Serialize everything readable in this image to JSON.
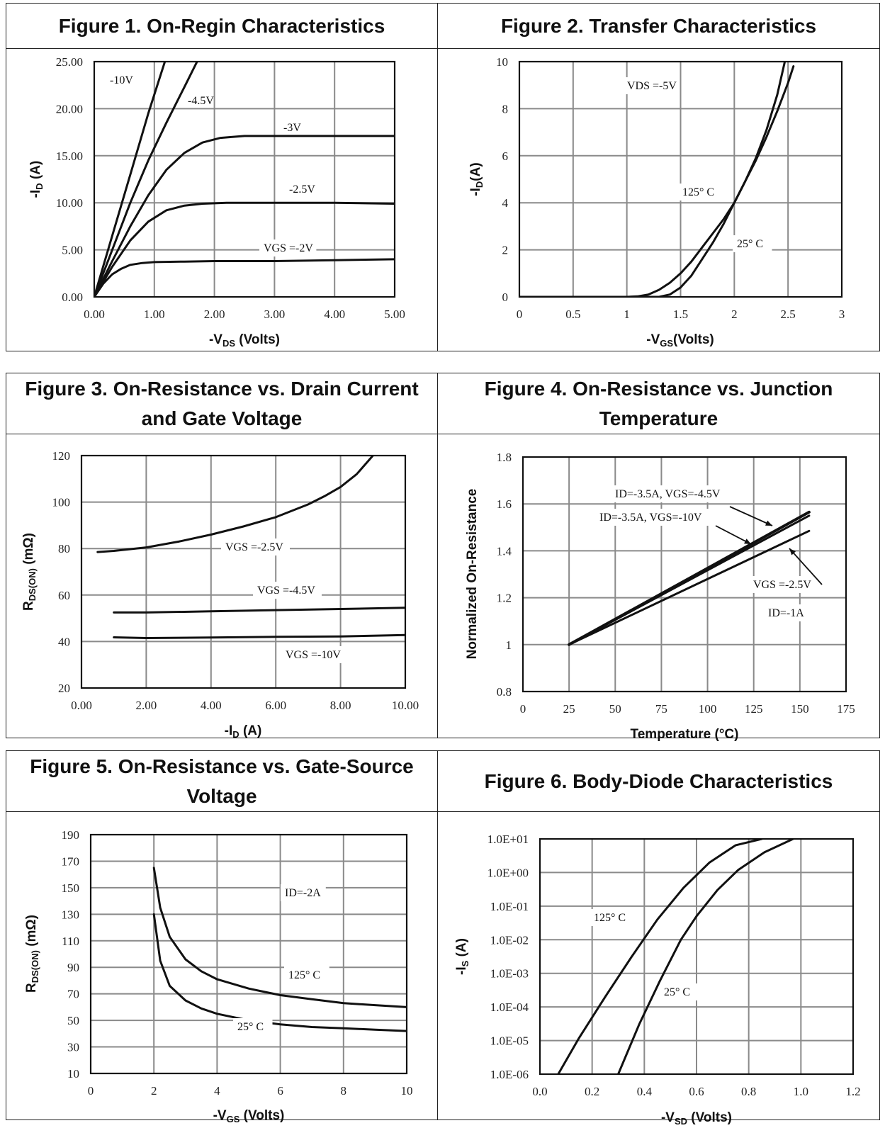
{
  "figures": [
    {
      "title": "Figure 1. On-Regin Characteristics",
      "xlabel": "-Vₑₛ (Volts)",
      "xlabel_main": "-V",
      "xlabel_sub": "DS",
      "xlabel_tail": " (Volts)",
      "ylabel_main": "-I",
      "ylabel_sub": "D",
      "ylabel_tail": " (A)"
    },
    {
      "title": "Figure 2. Transfer Characteristics",
      "xlabel_main": "-V",
      "xlabel_sub": "GS",
      "xlabel_tail": "(Volts)",
      "ylabel_main": "-I",
      "ylabel_sub": "D",
      "ylabel_tail": "(A)"
    },
    {
      "title": "Figure 3. On-Resistance vs. Drain Current and Gate Voltage",
      "xlabel_main": "-I",
      "xlabel_sub": "D",
      "xlabel_tail": " (A)",
      "ylabel_main": "R",
      "ylabel_sub": "DS(ON)",
      "ylabel_tail": " (mΩ)"
    },
    {
      "title": "Figure 4. On-Resistance vs. Junction Temperature",
      "xlabel_main": "Temperature (°C)",
      "xlabel_sub": "",
      "xlabel_tail": "",
      "ylabel_main": "Normalized On-Resistance",
      "ylabel_sub": "",
      "ylabel_tail": ""
    },
    {
      "title": "Figure 5. On-Resistance vs. Gate-Source Voltage",
      "xlabel_main": "-V",
      "xlabel_sub": "GS",
      "xlabel_tail": " (Volts)",
      "ylabel_main": "R",
      "ylabel_sub": "DS(ON)",
      "ylabel_tail": " (mΩ)"
    },
    {
      "title": "Figure 6. Body-Diode Characteristics",
      "xlabel_main": "-V",
      "xlabel_sub": "SD",
      "xlabel_tail": " (Volts)",
      "ylabel_main": "-I",
      "ylabel_sub": "S",
      "ylabel_tail": " (A)"
    }
  ],
  "chart_data": [
    {
      "type": "line",
      "title": "Figure 1. On-Regin Characteristics",
      "xlabel": "-VDS (Volts)",
      "ylabel": "-ID (A)",
      "xlim": [
        0,
        5
      ],
      "ylim": [
        0,
        25
      ],
      "xticks": [
        "0.00",
        "1.00",
        "2.00",
        "3.00",
        "4.00",
        "5.00"
      ],
      "yticks": [
        "0.00",
        "5.00",
        "10.00",
        "15.00",
        "20.00",
        "25.00"
      ],
      "grid": true,
      "series": [
        {
          "name": "-10V",
          "x": [
            0,
            0.3,
            0.6,
            0.9,
            1.2
          ],
          "y": [
            0,
            6.5,
            13,
            19.5,
            25.5
          ]
        },
        {
          "name": "-4.5V",
          "x": [
            0,
            0.3,
            0.6,
            0.9,
            1.2,
            1.5,
            1.75
          ],
          "y": [
            0,
            5,
            10,
            14.5,
            18.5,
            22.3,
            25.5
          ]
        },
        {
          "name": "-3V",
          "x": [
            0,
            0.3,
            0.6,
            0.9,
            1.2,
            1.5,
            1.8,
            2.1,
            2.5,
            3,
            4,
            5
          ],
          "y": [
            0,
            3.8,
            7.5,
            10.8,
            13.5,
            15.3,
            16.4,
            16.9,
            17.1,
            17.1,
            17.1,
            17.1
          ]
        },
        {
          "name": "-2.5V",
          "x": [
            0,
            0.3,
            0.6,
            0.9,
            1.2,
            1.5,
            1.8,
            2.2,
            3,
            4,
            5
          ],
          "y": [
            0,
            3.2,
            6,
            8,
            9.2,
            9.7,
            9.9,
            10,
            10,
            10,
            9.9
          ]
        },
        {
          "name": "VGS=-2V",
          "x": [
            0,
            0.15,
            0.3,
            0.45,
            0.6,
            0.8,
            1.0,
            1.5,
            2,
            3,
            4,
            5
          ],
          "y": [
            0,
            1.4,
            2.4,
            3.0,
            3.4,
            3.6,
            3.7,
            3.75,
            3.8,
            3.8,
            3.9,
            4.0
          ]
        }
      ],
      "annotations": [
        "-10V",
        "-4.5V",
        "-3V",
        "-2.5V",
        "VGS =-2V"
      ]
    },
    {
      "type": "line",
      "title": "Figure 2. Transfer Characteristics",
      "xlabel": "-VGS(Volts)",
      "ylabel": "-ID(A)",
      "xlim": [
        0,
        3
      ],
      "ylim": [
        0,
        10
      ],
      "xticks": [
        "0",
        "0.5",
        "1",
        "1.5",
        "2",
        "2.5",
        "3"
      ],
      "yticks": [
        "0",
        "2",
        "4",
        "6",
        "8",
        "10"
      ],
      "grid": true,
      "series": [
        {
          "name": "125° C",
          "x": [
            0,
            1.0,
            1.1,
            1.2,
            1.3,
            1.4,
            1.5,
            1.6,
            1.7,
            1.8,
            1.9,
            2.0,
            2.1,
            2.2,
            2.3,
            2.4,
            2.47
          ],
          "y": [
            0,
            0,
            0.02,
            0.1,
            0.3,
            0.6,
            1.0,
            1.5,
            2.1,
            2.7,
            3.3,
            4.0,
            4.9,
            5.9,
            7.1,
            8.6,
            10
          ]
        },
        {
          "name": "25° C",
          "x": [
            0,
            1.3,
            1.4,
            1.5,
            1.6,
            1.7,
            1.8,
            1.9,
            2.0,
            2.1,
            2.2,
            2.3,
            2.4,
            2.5,
            2.55
          ],
          "y": [
            0,
            0,
            0.1,
            0.4,
            0.9,
            1.6,
            2.3,
            3.1,
            4.0,
            4.9,
            5.8,
            6.8,
            7.9,
            9.1,
            9.8
          ]
        }
      ],
      "annotations": [
        "VDS =-5V",
        "125° C",
        "25° C"
      ]
    },
    {
      "type": "line",
      "title": "Figure 3. On-Resistance vs. Drain Current and Gate Voltage",
      "xlabel": "-ID (A)",
      "ylabel": "RDS(ON) (mΩ)",
      "xlim": [
        0,
        10
      ],
      "ylim": [
        20,
        120
      ],
      "xticks": [
        "0.00",
        "2.00",
        "4.00",
        "6.00",
        "8.00",
        "10.00"
      ],
      "yticks": [
        "20",
        "40",
        "60",
        "80",
        "100",
        "120"
      ],
      "grid": true,
      "series": [
        {
          "name": "VGS =-2.5V",
          "x": [
            0.5,
            1,
            2,
            3,
            4,
            5,
            6,
            7,
            7.5,
            8,
            8.5,
            9
          ],
          "y": [
            78.5,
            79,
            80.5,
            83,
            86,
            89.5,
            93.5,
            99,
            102.5,
            106.5,
            112,
            120
          ]
        },
        {
          "name": "VGS =-4.5V",
          "x": [
            1,
            2,
            4,
            6,
            8,
            10
          ],
          "y": [
            52.5,
            52.5,
            53,
            53.5,
            54,
            54.5
          ]
        },
        {
          "name": "VGS =-10V",
          "x": [
            1,
            2,
            4,
            6,
            8,
            10
          ],
          "y": [
            41.8,
            41.5,
            41.7,
            42,
            42.2,
            42.8
          ]
        }
      ],
      "annotations": [
        "VGS =-2.5V",
        "VGS =-4.5V",
        "VGS =-10V"
      ]
    },
    {
      "type": "line",
      "title": "Figure 4. On-Resistance vs. Junction Temperature",
      "xlabel": "Temperature (°C)",
      "ylabel": "Normalized On-Resistance",
      "xlim": [
        0,
        175
      ],
      "ylim": [
        0.8,
        1.8
      ],
      "xticks": [
        "0",
        "25",
        "50",
        "75",
        "100",
        "125",
        "150",
        "175"
      ],
      "yticks": [
        "0.8",
        "1",
        "1.2",
        "1.4",
        "1.6",
        "1.8"
      ],
      "grid": true,
      "series": [
        {
          "name": "ID=-3.5A, VGS=-4.5V",
          "x": [
            25,
            155
          ],
          "y": [
            1.0,
            1.565
          ]
        },
        {
          "name": "ID=-3.5A, VGS=-10V",
          "x": [
            25,
            155
          ],
          "y": [
            1.0,
            1.55
          ]
        },
        {
          "name": "VGS =-2.5V ID=-1A",
          "x": [
            25,
            155
          ],
          "y": [
            1.0,
            1.485
          ]
        }
      ],
      "annotations": [
        "ID=-3.5A, VGS=-4.5V",
        "ID=-3.5A, VGS=-10V",
        "VGS =-2.5V",
        "ID=-1A"
      ]
    },
    {
      "type": "line",
      "title": "Figure 5. On-Resistance vs. Gate-Source Voltage",
      "xlabel": "-VGS (Volts)",
      "ylabel": "RDS(ON) (mΩ)",
      "xlim": [
        0,
        10
      ],
      "ylim": [
        10,
        190
      ],
      "xticks": [
        "0",
        "2",
        "4",
        "6",
        "8",
        "10"
      ],
      "yticks": [
        "10",
        "30",
        "50",
        "70",
        "90",
        "110",
        "130",
        "150",
        "170",
        "190"
      ],
      "grid": true,
      "series": [
        {
          "name": "125° C",
          "x": [
            2,
            2.2,
            2.5,
            3,
            3.5,
            4,
            5,
            6,
            7,
            8,
            9,
            10
          ],
          "y": [
            165,
            135,
            113,
            96,
            87,
            81,
            74,
            69,
            66,
            63,
            61.5,
            60
          ]
        },
        {
          "name": "25° C",
          "x": [
            2,
            2.2,
            2.5,
            3,
            3.5,
            4,
            5,
            6,
            7,
            8,
            9,
            10
          ],
          "y": [
            130,
            95,
            76,
            65,
            59,
            55,
            50,
            47,
            45,
            44,
            43,
            42
          ]
        }
      ],
      "annotations": [
        "ID=-2A",
        "125° C",
        "25° C"
      ]
    },
    {
      "type": "line",
      "title": "Figure 6. Body-Diode Characteristics",
      "xlabel": "-VSD (Volts)",
      "ylabel": "-IS (A)",
      "xlim": [
        0,
        1.2
      ],
      "ylim": [
        1e-06,
        10
      ],
      "yscale": "log",
      "xticks": [
        "0.0",
        "0.2",
        "0.4",
        "0.6",
        "0.8",
        "1.0",
        "1.2"
      ],
      "yticks": [
        "1.0E-06",
        "1.0E-05",
        "1.0E-04",
        "1.0E-03",
        "1.0E-02",
        "1.0E-01",
        "1.0E+00",
        "1.0E+01"
      ],
      "grid": true,
      "series": [
        {
          "name": "125° C",
          "x": [
            0.07,
            0.15,
            0.25,
            0.35,
            0.45,
            0.55,
            0.65,
            0.75,
            0.85
          ],
          "y": [
            1e-06,
            1.2e-05,
            0.0002,
            0.003,
            0.04,
            0.35,
            2.0,
            6.5,
            10
          ]
        },
        {
          "name": "25° C",
          "x": [
            0.3,
            0.38,
            0.46,
            0.54,
            0.6,
            0.68,
            0.76,
            0.86,
            0.97
          ],
          "y": [
            1e-06,
            3e-05,
            0.0006,
            0.01,
            0.05,
            0.3,
            1.2,
            4.0,
            10
          ]
        }
      ],
      "annotations": [
        "125° C",
        "25° C"
      ]
    }
  ]
}
